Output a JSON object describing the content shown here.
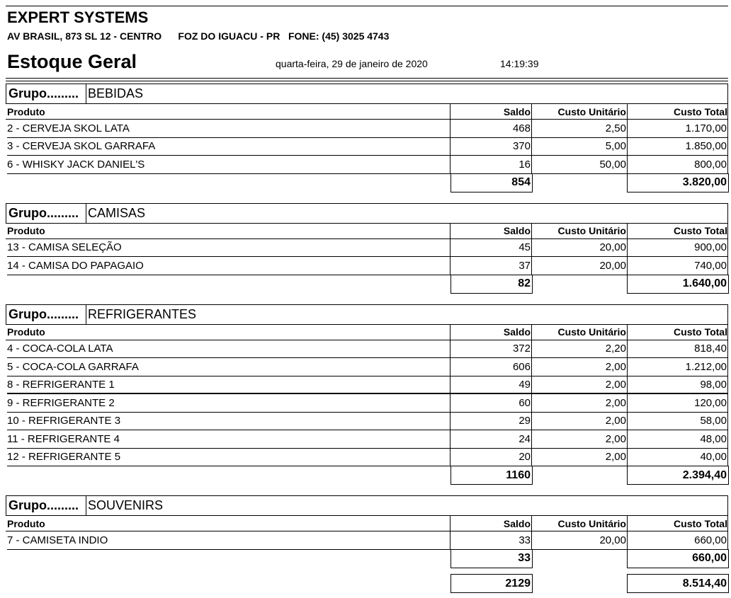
{
  "header": {
    "company": "EXPERT SYSTEMS",
    "address": "AV BRASIL, 873 SL 12 - CENTRO      FOZ DO IGUACU - PR   FONE: (45) 3025 4743",
    "title": "Estoque Geral",
    "date": "quarta-feira, 29 de janeiro de 2020",
    "time": "14:19:39"
  },
  "group_label": "Grupo.........",
  "columns": {
    "produto": "Produto",
    "saldo": "Saldo",
    "unit": "Custo Unitário",
    "total": "Custo Total"
  },
  "groups": [
    {
      "name": "BEBIDAS",
      "rows": [
        {
          "produto": "2 - CERVEJA SKOL LATA",
          "saldo": "468",
          "unit": "2,50",
          "total": "1.170,00"
        },
        {
          "produto": "3 - CERVEJA SKOL GARRAFA",
          "saldo": "370",
          "unit": "5,00",
          "total": "1.850,00"
        },
        {
          "produto": "6 - WHISKY JACK DANIEL'S",
          "saldo": "16",
          "unit": "50,00",
          "total": "800,00"
        }
      ],
      "sum_saldo": "854",
      "sum_total": "3.820,00"
    },
    {
      "name": "CAMISAS",
      "rows": [
        {
          "produto": "13 - CAMISA SELEÇÃO",
          "saldo": "45",
          "unit": "20,00",
          "total": "900,00"
        },
        {
          "produto": "14 - CAMISA DO PAPAGAIO",
          "saldo": "37",
          "unit": "20,00",
          "total": "740,00"
        }
      ],
      "sum_saldo": "82",
      "sum_total": "1.640,00"
    },
    {
      "name": "REFRIGERANTES",
      "rows": [
        {
          "produto": "4 - COCA-COLA LATA",
          "saldo": "372",
          "unit": "2,20",
          "total": "818,40"
        },
        {
          "produto": "5 - COCA-COLA GARRAFA",
          "saldo": "606",
          "unit": "2,00",
          "total": "1.212,00"
        },
        {
          "produto": "8 - REFRIGERANTE 1",
          "saldo": "49",
          "unit": "2,00",
          "total": "98,00"
        },
        {
          "produto": "9 - REFRIGERANTE 2",
          "saldo": "60",
          "unit": "2,00",
          "total": "120,00"
        },
        {
          "produto": "10 - REFRIGERANTE 3",
          "saldo": "29",
          "unit": "2,00",
          "total": "58,00"
        },
        {
          "produto": "11 - REFRIGERANTE 4",
          "saldo": "24",
          "unit": "2,00",
          "total": "48,00"
        },
        {
          "produto": "12 - REFRIGERANTE 5",
          "saldo": "20",
          "unit": "2,00",
          "total": "40,00"
        }
      ],
      "sum_saldo": "1160",
      "sum_total": "2.394,40"
    },
    {
      "name": "SOUVENIRS",
      "rows": [
        {
          "produto": "7 - CAMISETA INDIO",
          "saldo": "33",
          "unit": "20,00",
          "total": "660,00"
        }
      ],
      "sum_saldo": "33",
      "sum_total": "660,00"
    }
  ],
  "grand_total": {
    "saldo": "2129",
    "total": "8.514,40"
  }
}
